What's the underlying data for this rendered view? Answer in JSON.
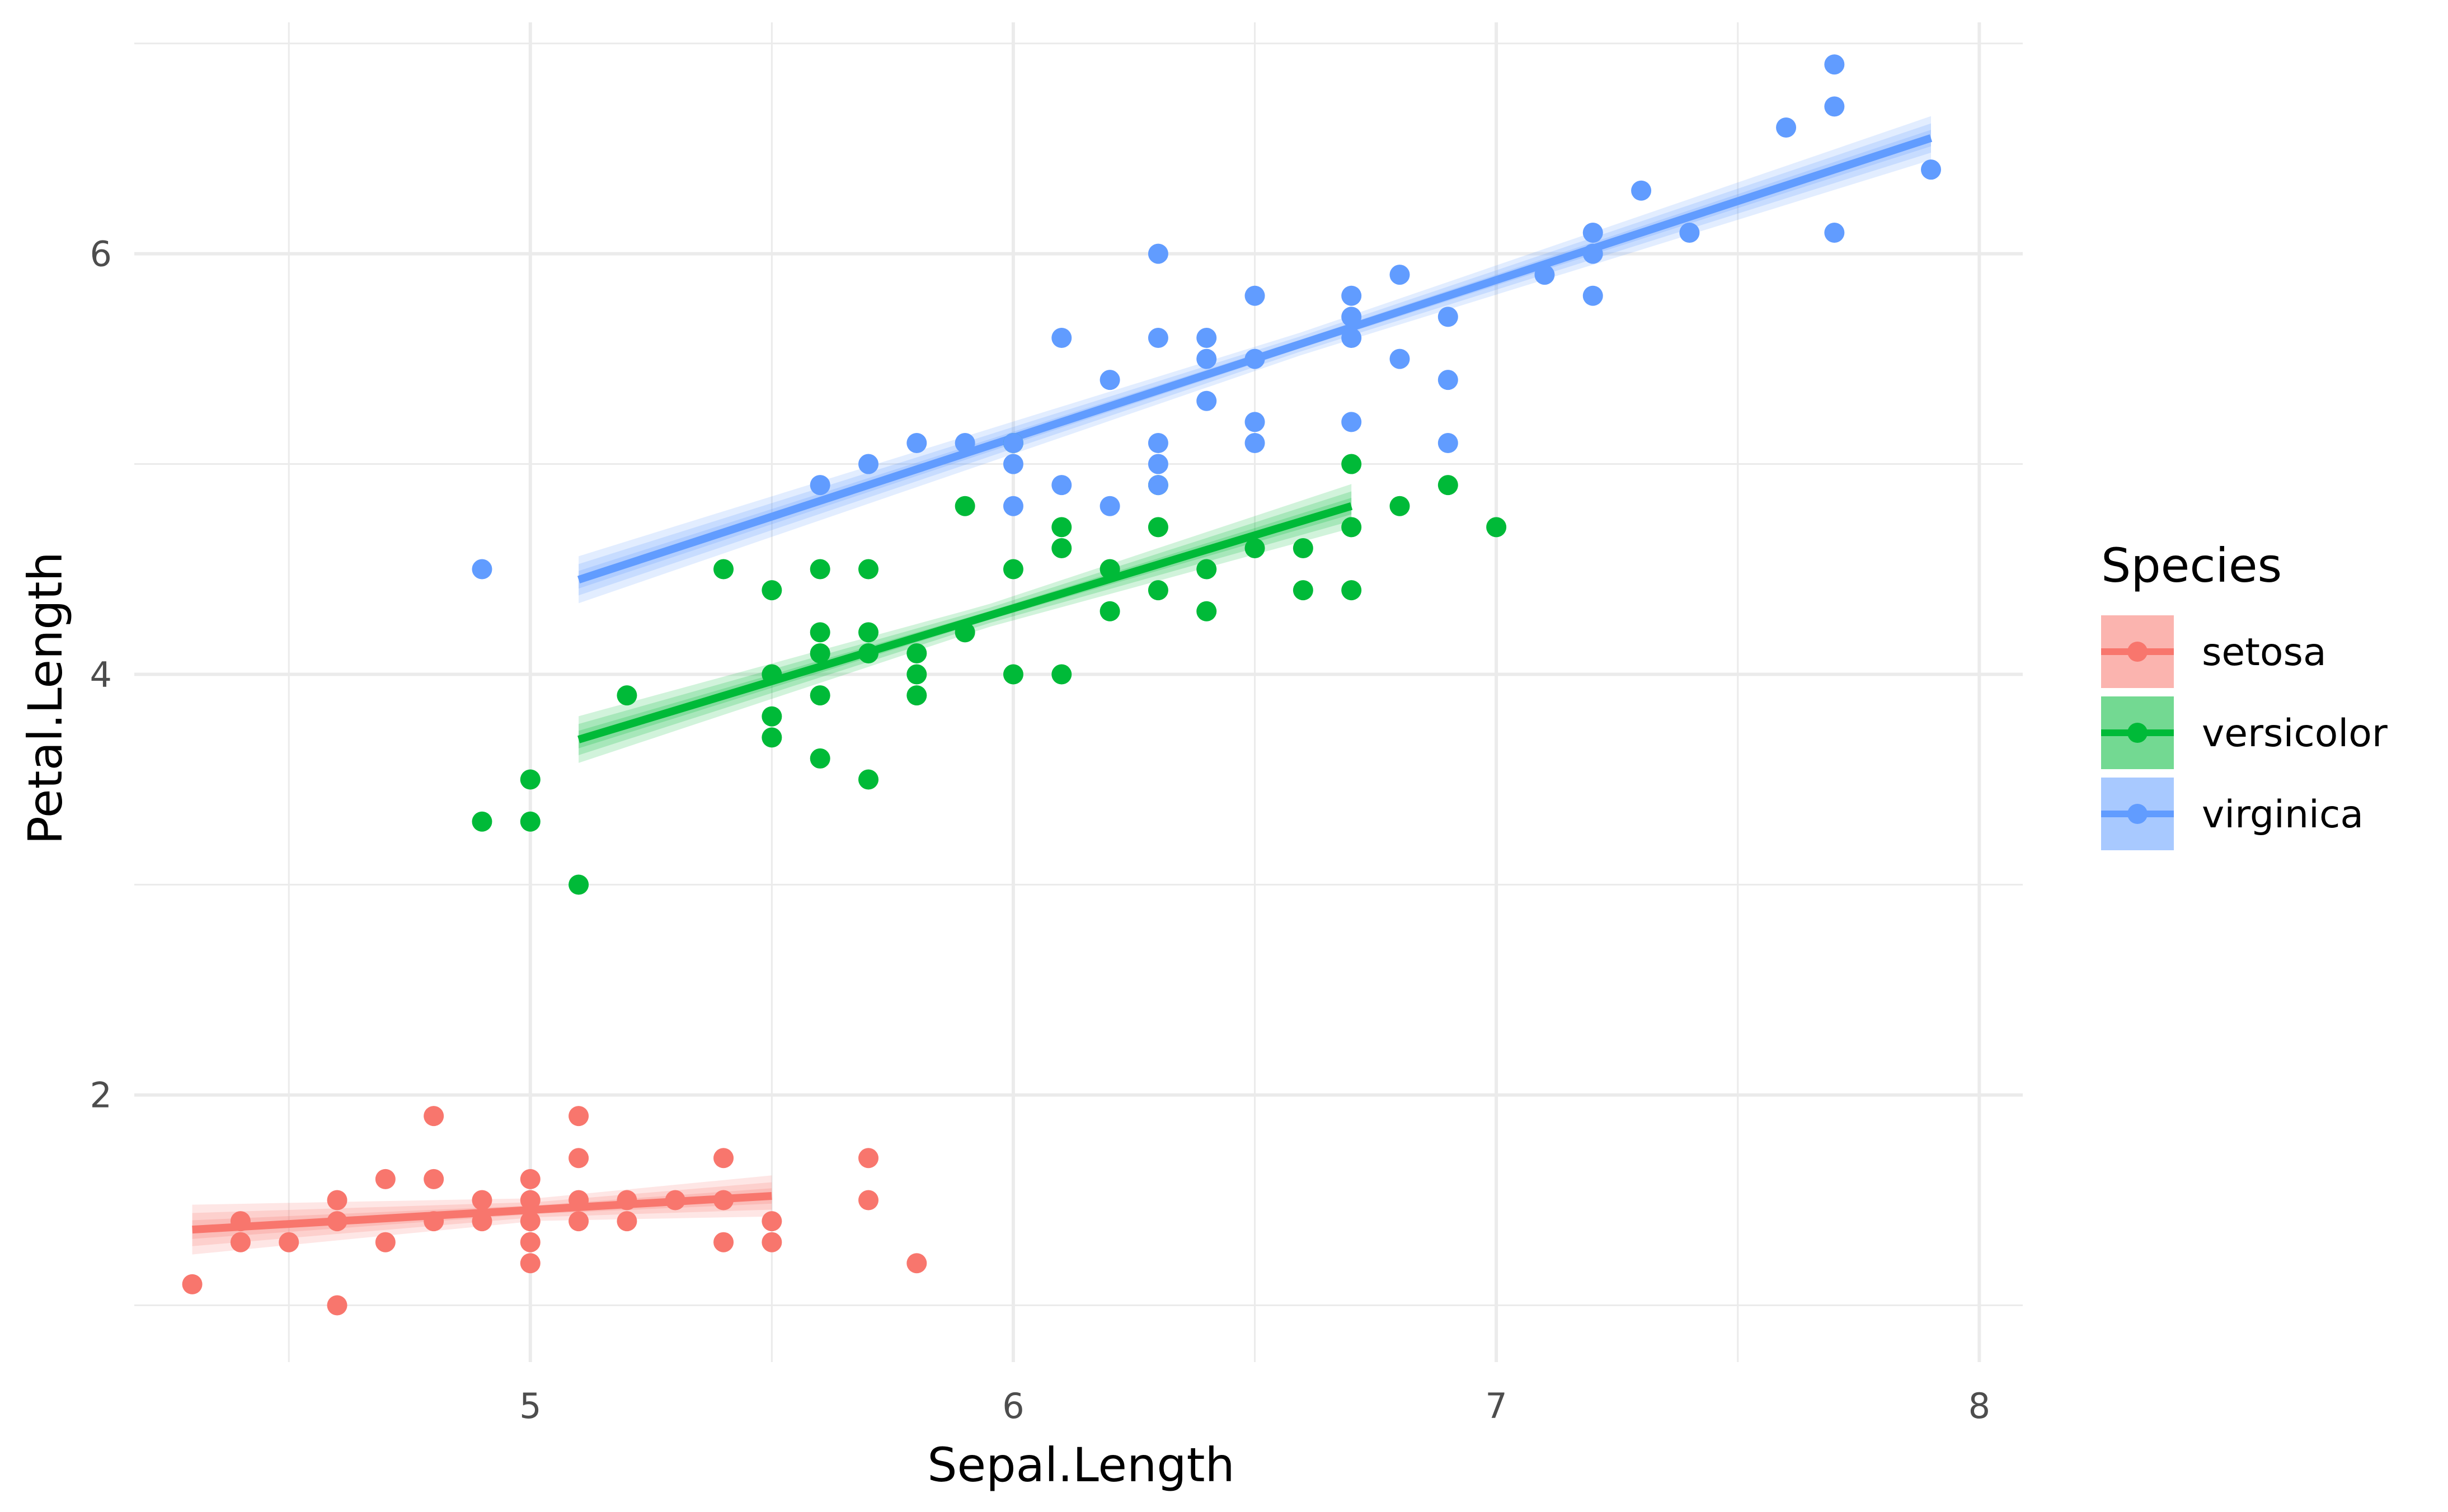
{
  "chart_data": {
    "type": "scatter",
    "xlabel": "Sepal.Length",
    "ylabel": "Petal.Length",
    "xlim": [
      4.18,
      8.09
    ],
    "ylim": [
      0.73,
      7.1
    ],
    "x_ticks": [
      5,
      6,
      7,
      8
    ],
    "y_ticks": [
      2,
      4,
      6
    ],
    "x_tick_labels": [
      "5",
      "6",
      "7",
      "8"
    ],
    "y_tick_labels": [
      "2",
      "4",
      "6"
    ],
    "grid": true,
    "legend": {
      "title": "Species",
      "position": "right"
    },
    "series": [
      {
        "name": "setosa",
        "color": "#F8766D",
        "fit": {
          "x": [
            4.3,
            5.5
          ],
          "y": [
            1.36,
            1.52
          ]
        },
        "points": [
          [
            4.3,
            1.1
          ],
          [
            4.4,
            1.4
          ],
          [
            4.4,
            1.3
          ],
          [
            4.5,
            1.3
          ],
          [
            4.6,
            1.5
          ],
          [
            4.6,
            1.4
          ],
          [
            4.6,
            1.0
          ],
          [
            4.7,
            1.6
          ],
          [
            4.7,
            1.3
          ],
          [
            4.8,
            1.9
          ],
          [
            4.8,
            1.6
          ],
          [
            4.8,
            1.4
          ],
          [
            4.9,
            1.5
          ],
          [
            4.9,
            1.4
          ],
          [
            5.0,
            1.6
          ],
          [
            5.0,
            1.5
          ],
          [
            5.0,
            1.4
          ],
          [
            5.0,
            1.3
          ],
          [
            5.0,
            1.2
          ],
          [
            5.1,
            1.9
          ],
          [
            5.1,
            1.7
          ],
          [
            5.1,
            1.5
          ],
          [
            5.1,
            1.4
          ],
          [
            5.2,
            1.5
          ],
          [
            5.2,
            1.4
          ],
          [
            5.3,
            1.5
          ],
          [
            5.4,
            1.7
          ],
          [
            5.4,
            1.5
          ],
          [
            5.4,
            1.3
          ],
          [
            5.5,
            1.4
          ],
          [
            5.5,
            1.3
          ],
          [
            5.7,
            1.7
          ],
          [
            5.7,
            1.5
          ],
          [
            5.8,
            1.2
          ]
        ]
      },
      {
        "name": "versicolor",
        "color": "#00BA38",
        "fit": {
          "x": [
            5.1,
            6.7
          ],
          "y": [
            3.69,
            4.8
          ]
        },
        "points": [
          [
            4.9,
            3.3
          ],
          [
            5.0,
            3.5
          ],
          [
            5.0,
            3.3
          ],
          [
            5.1,
            3.0
          ],
          [
            5.2,
            3.9
          ],
          [
            5.4,
            4.5
          ],
          [
            5.5,
            4.4
          ],
          [
            5.5,
            4.0
          ],
          [
            5.5,
            3.8
          ],
          [
            5.5,
            3.7
          ],
          [
            5.6,
            4.5
          ],
          [
            5.6,
            4.2
          ],
          [
            5.6,
            4.1
          ],
          [
            5.6,
            3.9
          ],
          [
            5.6,
            3.6
          ],
          [
            5.7,
            4.5
          ],
          [
            5.7,
            4.2
          ],
          [
            5.7,
            4.1
          ],
          [
            5.7,
            3.5
          ],
          [
            5.8,
            4.1
          ],
          [
            5.8,
            4.0
          ],
          [
            5.8,
            3.9
          ],
          [
            5.9,
            4.8
          ],
          [
            5.9,
            4.2
          ],
          [
            6.0,
            5.1
          ],
          [
            6.0,
            4.5
          ],
          [
            6.0,
            4.0
          ],
          [
            6.1,
            4.7
          ],
          [
            6.1,
            4.6
          ],
          [
            6.1,
            4.0
          ],
          [
            6.2,
            4.5
          ],
          [
            6.2,
            4.3
          ],
          [
            6.3,
            4.9
          ],
          [
            6.3,
            4.7
          ],
          [
            6.3,
            4.4
          ],
          [
            6.4,
            4.5
          ],
          [
            6.4,
            4.3
          ],
          [
            6.5,
            4.6
          ],
          [
            6.6,
            4.6
          ],
          [
            6.6,
            4.4
          ],
          [
            6.7,
            5.0
          ],
          [
            6.7,
            4.7
          ],
          [
            6.7,
            4.4
          ],
          [
            6.8,
            4.8
          ],
          [
            6.9,
            4.9
          ],
          [
            7.0,
            4.7
          ]
        ]
      },
      {
        "name": "virginica",
        "color": "#619CFF",
        "fit": {
          "x": [
            5.1,
            7.9
          ],
          "y": [
            4.45,
            6.55
          ]
        },
        "points": [
          [
            4.9,
            4.5
          ],
          [
            5.6,
            4.9
          ],
          [
            5.7,
            5.0
          ],
          [
            5.8,
            5.1
          ],
          [
            5.9,
            5.1
          ],
          [
            6.0,
            5.1
          ],
          [
            6.0,
            5.0
          ],
          [
            6.0,
            4.8
          ],
          [
            6.1,
            5.6
          ],
          [
            6.1,
            4.9
          ],
          [
            6.2,
            5.4
          ],
          [
            6.2,
            4.8
          ],
          [
            6.3,
            6.0
          ],
          [
            6.3,
            5.6
          ],
          [
            6.3,
            5.1
          ],
          [
            6.3,
            5.0
          ],
          [
            6.3,
            4.9
          ],
          [
            6.4,
            5.6
          ],
          [
            6.4,
            5.5
          ],
          [
            6.4,
            5.3
          ],
          [
            6.5,
            5.8
          ],
          [
            6.5,
            5.5
          ],
          [
            6.5,
            5.2
          ],
          [
            6.5,
            5.1
          ],
          [
            6.7,
            5.8
          ],
          [
            6.7,
            5.7
          ],
          [
            6.7,
            5.6
          ],
          [
            6.7,
            5.2
          ],
          [
            6.8,
            5.9
          ],
          [
            6.8,
            5.5
          ],
          [
            6.9,
            5.7
          ],
          [
            6.9,
            5.4
          ],
          [
            6.9,
            5.1
          ],
          [
            7.1,
            5.9
          ],
          [
            7.2,
            6.1
          ],
          [
            7.2,
            6.0
          ],
          [
            7.2,
            5.8
          ],
          [
            7.3,
            6.3
          ],
          [
            7.4,
            6.1
          ],
          [
            7.6,
            6.6
          ],
          [
            7.7,
            6.9
          ],
          [
            7.7,
            6.7
          ],
          [
            7.7,
            6.1
          ],
          [
            7.9,
            6.4
          ]
        ]
      }
    ]
  }
}
